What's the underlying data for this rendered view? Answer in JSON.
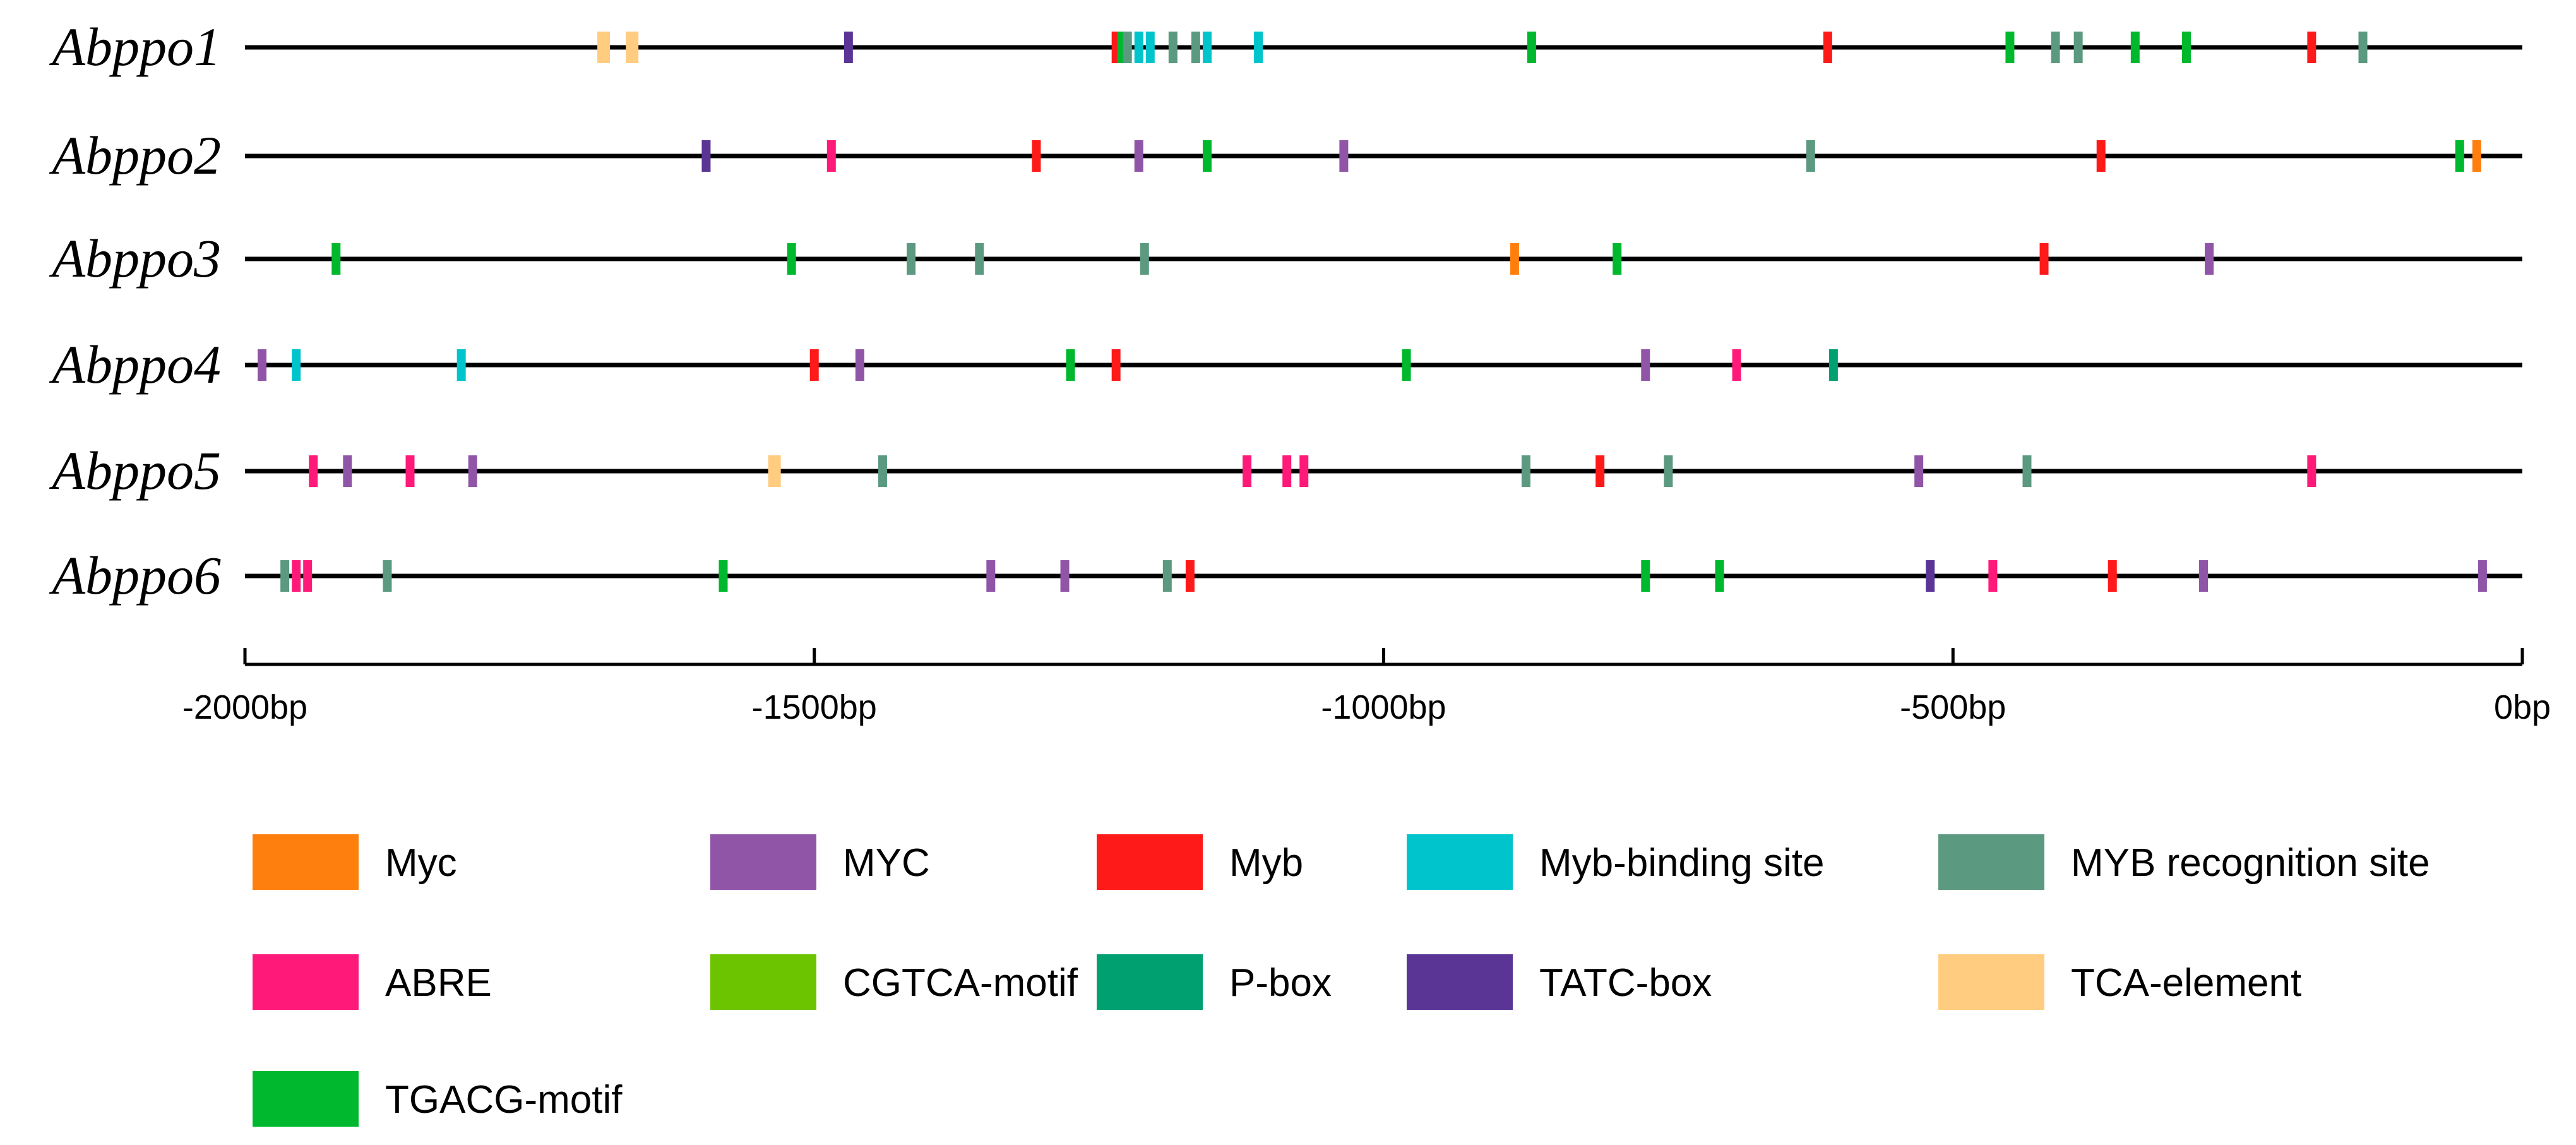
{
  "chart_data": {
    "type": "promoter-element-map",
    "title": "",
    "xlabel": "",
    "xlim": [
      -2000,
      0
    ],
    "ticks": [
      {
        "value": -2000,
        "label": "-2000bp"
      },
      {
        "value": -1500,
        "label": "-1500bp"
      },
      {
        "value": -1000,
        "label": "-1000bp"
      },
      {
        "value": -500,
        "label": "-500bp"
      },
      {
        "value": 0,
        "label": "0bp"
      }
    ],
    "element_types": [
      {
        "key": "Myc",
        "label": "Myc",
        "color": "#FF7F0E"
      },
      {
        "key": "MYC",
        "label": "MYC",
        "color": "#9155A8"
      },
      {
        "key": "Myb",
        "label": "Myb",
        "color": "#FF1A1A"
      },
      {
        "key": "Myb-binding",
        "label": "Myb-binding site",
        "color": "#00C4CC"
      },
      {
        "key": "MYB-recog",
        "label": "MYB recognition site",
        "color": "#5B9A80"
      },
      {
        "key": "ABRE",
        "label": "ABRE",
        "color": "#FF1A7A"
      },
      {
        "key": "CGTCA",
        "label": "CGTCA-motif",
        "color": "#6CC400"
      },
      {
        "key": "P-box",
        "label": "P-box",
        "color": "#00A070"
      },
      {
        "key": "TATC",
        "label": "TATC-box",
        "color": "#5B3596"
      },
      {
        "key": "TCA",
        "label": "TCA-element",
        "color": "#FFCC80"
      },
      {
        "key": "TGACG",
        "label": "TGACG-motif",
        "color": "#00B82E"
      }
    ],
    "genes": [
      {
        "name": "Abppo1",
        "elements": [
          {
            "type": "TCA",
            "pos": -1685
          },
          {
            "type": "TCA",
            "pos": -1660
          },
          {
            "type": "TATC",
            "pos": -1470
          },
          {
            "type": "Myb",
            "pos": -1235
          },
          {
            "type": "TGACG",
            "pos": -1230
          },
          {
            "type": "MYB-recog",
            "pos": -1225
          },
          {
            "type": "Myb-binding",
            "pos": -1215
          },
          {
            "type": "Myb-binding",
            "pos": -1205
          },
          {
            "type": "MYB-recog",
            "pos": -1185
          },
          {
            "type": "MYB-recog",
            "pos": -1165
          },
          {
            "type": "Myb-binding",
            "pos": -1155
          },
          {
            "type": "Myb-binding",
            "pos": -1110
          },
          {
            "type": "TGACG",
            "pos": -870
          },
          {
            "type": "Myb",
            "pos": -610
          },
          {
            "type": "TGACG",
            "pos": -450
          },
          {
            "type": "MYB-recog",
            "pos": -410
          },
          {
            "type": "MYB-recog",
            "pos": -390
          },
          {
            "type": "TGACG",
            "pos": -340
          },
          {
            "type": "TGACG",
            "pos": -295
          },
          {
            "type": "Myb",
            "pos": -185
          },
          {
            "type": "MYB-recog",
            "pos": -140
          }
        ]
      },
      {
        "name": "Abppo2",
        "elements": [
          {
            "type": "TATC",
            "pos": -1595
          },
          {
            "type": "ABRE",
            "pos": -1485
          },
          {
            "type": "Myb",
            "pos": -1305
          },
          {
            "type": "MYC",
            "pos": -1215
          },
          {
            "type": "TGACG",
            "pos": -1155
          },
          {
            "type": "MYC",
            "pos": -1035
          },
          {
            "type": "MYB-recog",
            "pos": -625
          },
          {
            "type": "Myb",
            "pos": -370
          },
          {
            "type": "TGACG",
            "pos": -55
          },
          {
            "type": "Myc",
            "pos": -40
          }
        ]
      },
      {
        "name": "Abppo3",
        "elements": [
          {
            "type": "TGACG",
            "pos": -1920
          },
          {
            "type": "TGACG",
            "pos": -1520
          },
          {
            "type": "MYB-recog",
            "pos": -1415
          },
          {
            "type": "MYB-recog",
            "pos": -1355
          },
          {
            "type": "MYB-recog",
            "pos": -1210
          },
          {
            "type": "Myc",
            "pos": -885
          },
          {
            "type": "TGACG",
            "pos": -795
          },
          {
            "type": "Myb",
            "pos": -420
          },
          {
            "type": "MYC",
            "pos": -275
          }
        ]
      },
      {
        "name": "Abppo4",
        "elements": [
          {
            "type": "MYC",
            "pos": -1985
          },
          {
            "type": "Myb-binding",
            "pos": -1955
          },
          {
            "type": "Myb-binding",
            "pos": -1810
          },
          {
            "type": "Myb",
            "pos": -1500
          },
          {
            "type": "MYC",
            "pos": -1460
          },
          {
            "type": "TGACG",
            "pos": -1275
          },
          {
            "type": "Myb",
            "pos": -1235
          },
          {
            "type": "TGACG",
            "pos": -980
          },
          {
            "type": "MYC",
            "pos": -770
          },
          {
            "type": "ABRE",
            "pos": -690
          },
          {
            "type": "P-box",
            "pos": -605
          }
        ]
      },
      {
        "name": "Abppo5",
        "elements": [
          {
            "type": "ABRE",
            "pos": -1940
          },
          {
            "type": "MYC",
            "pos": -1910
          },
          {
            "type": "ABRE",
            "pos": -1855
          },
          {
            "type": "MYC",
            "pos": -1800
          },
          {
            "type": "TCA",
            "pos": -1535
          },
          {
            "type": "MYB-recog",
            "pos": -1440
          },
          {
            "type": "ABRE",
            "pos": -1120
          },
          {
            "type": "ABRE",
            "pos": -1085
          },
          {
            "type": "ABRE",
            "pos": -1070
          },
          {
            "type": "MYB-recog",
            "pos": -875
          },
          {
            "type": "Myb",
            "pos": -810
          },
          {
            "type": "MYB-recog",
            "pos": -750
          },
          {
            "type": "MYC",
            "pos": -530
          },
          {
            "type": "MYB-recog",
            "pos": -435
          },
          {
            "type": "ABRE",
            "pos": -185
          }
        ]
      },
      {
        "name": "Abppo6",
        "elements": [
          {
            "type": "MYB-recog",
            "pos": -1965
          },
          {
            "type": "ABRE",
            "pos": -1955
          },
          {
            "type": "ABRE",
            "pos": -1945
          },
          {
            "type": "MYB-recog",
            "pos": -1875
          },
          {
            "type": "TGACG",
            "pos": -1580
          },
          {
            "type": "MYC",
            "pos": -1345
          },
          {
            "type": "MYC",
            "pos": -1280
          },
          {
            "type": "MYB-recog",
            "pos": -1190
          },
          {
            "type": "Myb",
            "pos": -1170
          },
          {
            "type": "TGACG",
            "pos": -770
          },
          {
            "type": "TGACG",
            "pos": -705
          },
          {
            "type": "TATC",
            "pos": -520
          },
          {
            "type": "ABRE",
            "pos": -465
          },
          {
            "type": "Myb",
            "pos": -360
          },
          {
            "type": "MYC",
            "pos": -280
          },
          {
            "type": "MYC",
            "pos": -35
          }
        ]
      }
    ]
  }
}
